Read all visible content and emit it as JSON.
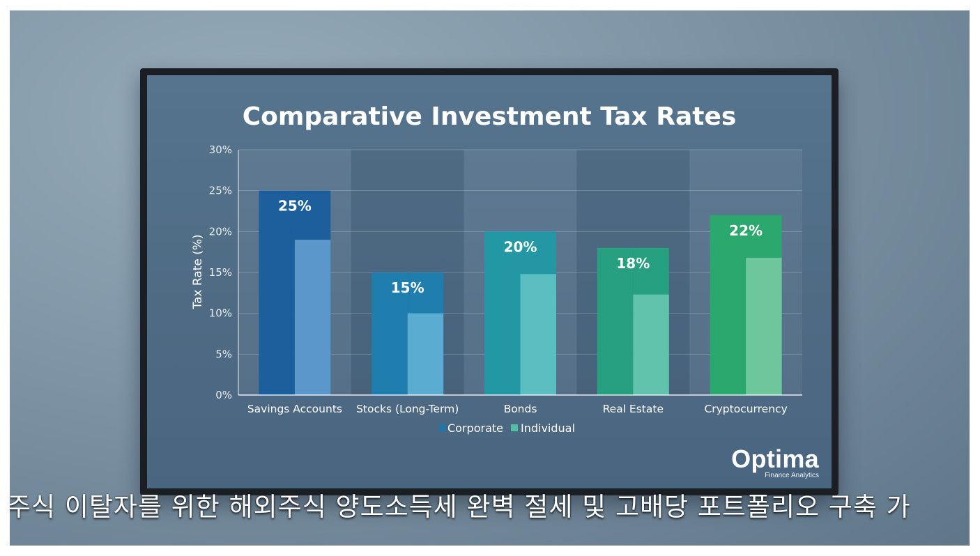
{
  "colors": {
    "corporate": [
      "#1c5f9c",
      "#1f7eae",
      "#2398a4",
      "#26a07f",
      "#2ba86d"
    ],
    "individual": [
      "#5b97cb",
      "#5aacd1",
      "#5bbfc2",
      "#62c3ac",
      "#6ec79c"
    ],
    "legend_corporate": "#1f77a8",
    "legend_individual": "#4fbfa4"
  },
  "chart_data": {
    "type": "bar",
    "title": "Comparative Investment Tax Rates",
    "xlabel": "",
    "ylabel": "Tax Rate (%)",
    "ylim": [
      0,
      30
    ],
    "yticks": [
      "0%",
      "5%",
      "10%",
      "15%",
      "20%",
      "25%",
      "30%"
    ],
    "grid": true,
    "legend_position": "bottom-center",
    "categories": [
      "Savings Accounts",
      "Stocks (Long-Term)",
      "Bonds",
      "Real Estate",
      "Cryptocurrency"
    ],
    "series": [
      {
        "name": "Corporate",
        "values": [
          25,
          15,
          20,
          18,
          22
        ],
        "labels": [
          "25%",
          "15%",
          "20%",
          "18%",
          "22%"
        ]
      },
      {
        "name": "Individual",
        "values": [
          19,
          10,
          14.8,
          12.3,
          16.8
        ]
      }
    ]
  },
  "brand": {
    "name": "Optima",
    "tagline": "Finance Analytics"
  },
  "caption": "주식 이탈자를 위한 해외주식 양도소득세 완벽 절세 및 고배당 포트폴리오 구축 가"
}
